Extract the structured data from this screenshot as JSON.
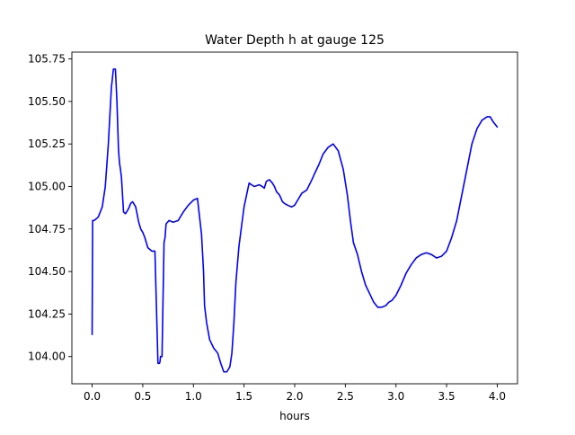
{
  "chart_data": {
    "type": "line",
    "title": "Water Depth h at gauge 125",
    "xlabel": "hours",
    "ylabel": "",
    "xlim": [
      -0.2,
      4.2
    ],
    "ylim": [
      103.84,
      105.79
    ],
    "grid": false,
    "legend": "none",
    "x_ticks": [
      {
        "value": 0.0,
        "label": "0.0"
      },
      {
        "value": 0.5,
        "label": "0.5"
      },
      {
        "value": 1.0,
        "label": "1.0"
      },
      {
        "value": 1.5,
        "label": "1.5"
      },
      {
        "value": 2.0,
        "label": "2.0"
      },
      {
        "value": 2.5,
        "label": "2.5"
      },
      {
        "value": 3.0,
        "label": "3.0"
      },
      {
        "value": 3.5,
        "label": "3.5"
      },
      {
        "value": 4.0,
        "label": "4.0"
      }
    ],
    "y_ticks": [
      {
        "value": 104.0,
        "label": "104.00"
      },
      {
        "value": 104.25,
        "label": "104.25"
      },
      {
        "value": 104.5,
        "label": "104.50"
      },
      {
        "value": 104.75,
        "label": "104.75"
      },
      {
        "value": 105.0,
        "label": "105.00"
      },
      {
        "value": 105.25,
        "label": "105.25"
      },
      {
        "value": 105.5,
        "label": "105.50"
      },
      {
        "value": 105.75,
        "label": "105.75"
      }
    ],
    "series": [
      {
        "color": "#0000ff",
        "x": [
          0.0,
          0.005,
          0.02,
          0.06,
          0.1,
          0.13,
          0.16,
          0.19,
          0.21,
          0.23,
          0.245,
          0.26,
          0.27,
          0.28,
          0.29,
          0.31,
          0.33,
          0.36,
          0.38,
          0.4,
          0.43,
          0.46,
          0.48,
          0.5,
          0.52,
          0.55,
          0.59,
          0.62,
          0.65,
          0.665,
          0.67,
          0.675,
          0.69,
          0.71,
          0.72,
          0.725,
          0.73,
          0.76,
          0.8,
          0.85,
          0.9,
          0.95,
          1.0,
          1.04,
          1.08,
          1.1,
          1.11,
          1.13,
          1.16,
          1.2,
          1.24,
          1.27,
          1.3,
          1.33,
          1.36,
          1.38,
          1.4,
          1.42,
          1.45,
          1.5,
          1.55,
          1.6,
          1.65,
          1.68,
          1.7,
          1.72,
          1.75,
          1.78,
          1.8,
          1.82,
          1.85,
          1.88,
          1.9,
          1.93,
          1.97,
          2.0,
          2.03,
          2.07,
          2.12,
          2.17,
          2.2,
          2.24,
          2.28,
          2.33,
          2.38,
          2.43,
          2.48,
          2.52,
          2.55,
          2.58,
          2.62,
          2.66,
          2.7,
          2.74,
          2.78,
          2.82,
          2.86,
          2.9,
          2.93,
          2.96,
          3.0,
          3.05,
          3.1,
          3.15,
          3.2,
          3.25,
          3.3,
          3.35,
          3.4,
          3.45,
          3.5,
          3.55,
          3.6,
          3.65,
          3.7,
          3.75,
          3.8,
          3.85,
          3.9,
          3.93,
          3.96,
          4.0
        ],
        "y": [
          104.13,
          104.8,
          104.8,
          104.82,
          104.88,
          105.0,
          105.25,
          105.58,
          105.69,
          105.69,
          105.5,
          105.22,
          105.14,
          105.1,
          105.05,
          104.85,
          104.84,
          104.87,
          104.9,
          104.91,
          104.88,
          104.79,
          104.75,
          104.73,
          104.7,
          104.64,
          104.62,
          104.62,
          103.96,
          103.96,
          103.97,
          104.0,
          104.0,
          104.67,
          104.7,
          104.74,
          104.78,
          104.8,
          104.79,
          104.8,
          104.85,
          104.89,
          104.92,
          104.93,
          104.72,
          104.5,
          104.3,
          104.2,
          104.1,
          104.05,
          104.02,
          103.96,
          103.91,
          103.91,
          103.94,
          104.02,
          104.2,
          104.44,
          104.65,
          104.88,
          105.02,
          105.0,
          105.01,
          105.0,
          104.99,
          105.03,
          105.04,
          105.02,
          105.0,
          104.97,
          104.95,
          104.91,
          104.9,
          104.89,
          104.88,
          104.89,
          104.92,
          104.96,
          104.98,
          105.04,
          105.08,
          105.13,
          105.19,
          105.23,
          105.25,
          105.21,
          105.1,
          104.95,
          104.8,
          104.67,
          104.6,
          104.5,
          104.42,
          104.37,
          104.32,
          104.29,
          104.29,
          104.3,
          104.32,
          104.33,
          104.36,
          104.42,
          104.49,
          104.54,
          104.58,
          104.6,
          104.61,
          104.6,
          104.58,
          104.59,
          104.62,
          104.7,
          104.8,
          104.95,
          105.1,
          105.25,
          105.34,
          105.39,
          105.41,
          105.41,
          105.38,
          105.35
        ]
      }
    ]
  }
}
